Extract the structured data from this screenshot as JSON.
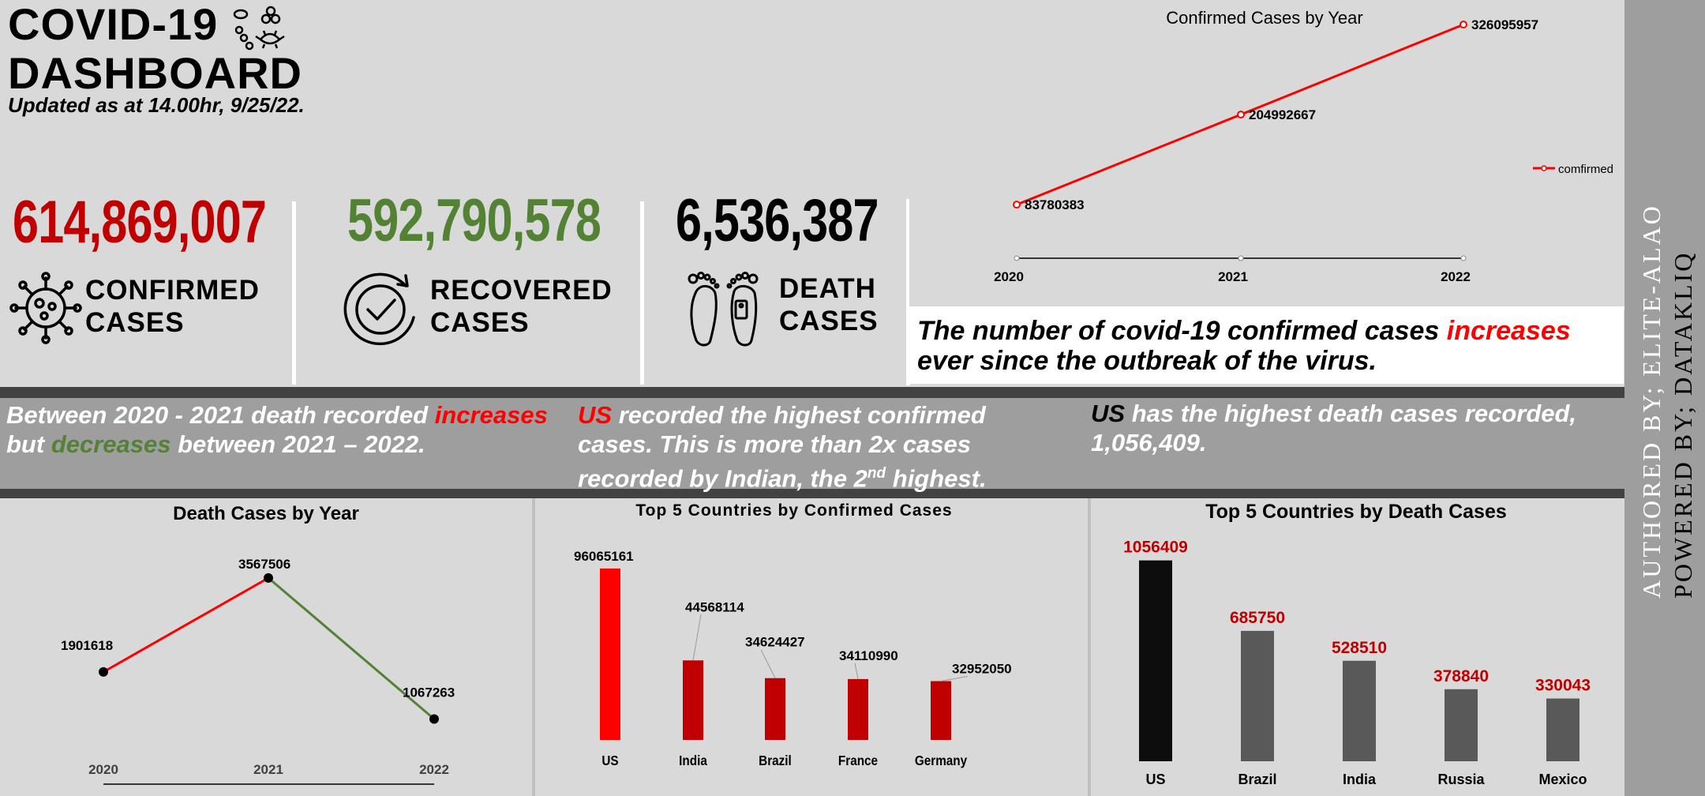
{
  "header": {
    "title_line1": "COVID-19",
    "title_line2": "DASHBOARD",
    "updated": "Updated as at 14.00hr, 9/25/22."
  },
  "kpis": {
    "confirmed": {
      "value": "614,869,007",
      "label1": "CONFIRMED",
      "label2": "CASES",
      "color": "#c00000",
      "icon": "virus-icon"
    },
    "recovered": {
      "value": "592,790,578",
      "label1": "RECOVERED",
      "label2": "CASES",
      "color": "#548235",
      "icon": "recovered-check-icon"
    },
    "death": {
      "value": "6,536,387",
      "label1": "DEATH",
      "label2": "CASES",
      "color": "#000000",
      "icon": "feet-tag-icon"
    }
  },
  "summary": {
    "part1": "The number of covid-19 confirmed cases ",
    "highlight": "increases",
    "part2": " ever since the outbreak of the virus."
  },
  "insights": {
    "left": {
      "a": "Between 2020 - 2021 death recorded ",
      "b": "increases",
      "c": " but ",
      "d": "decreases",
      "e": " between 2021 – 2022."
    },
    "middle": {
      "a": "US",
      "b": " recorded the highest confirmed cases. This is more than 2x cases recorded by Indian, the 2",
      "sup": "nd",
      "c": " highest."
    },
    "right": {
      "a": "US",
      "b": " has the highest death cases recorded, 1,056,409."
    }
  },
  "credits": {
    "authored_label": "AUTHORED BY; ",
    "authored_name": "ELITE-ALAO",
    "powered_label": "POWERED BY; ",
    "powered_name": "DATAKLIQ"
  },
  "chart_data": [
    {
      "id": "confirmed-by-year",
      "type": "line",
      "title": "Confirmed Cases by Year",
      "categories": [
        "2020",
        "2021",
        "2022"
      ],
      "series": [
        {
          "name": "comfirmed",
          "values": [
            83780383,
            204992667,
            326095957
          ],
          "color": "#ff0000"
        }
      ],
      "legend": "right",
      "ylim": [
        0,
        340000000
      ]
    },
    {
      "id": "death-by-year",
      "type": "line",
      "title": "Death Cases by Year",
      "categories": [
        "2020",
        "2021",
        "2022"
      ],
      "series": [
        {
          "name": "death",
          "values": [
            1901618,
            3567506,
            1067263
          ]
        }
      ],
      "segment_colors": [
        "#ff0000",
        "#548235"
      ],
      "legend": "bottom",
      "ylim": [
        500000,
        4000000
      ]
    },
    {
      "id": "top5-confirmed",
      "type": "bar",
      "title": "Top 5 Countries  by Confirmed Cases",
      "categories": [
        "US",
        "India",
        "Brazil",
        "France",
        "Germany"
      ],
      "values": [
        96065161,
        44568114,
        34624427,
        34110990,
        32952050
      ],
      "colors": [
        "#ff0000",
        "#c00000",
        "#c00000",
        "#c00000",
        "#c00000"
      ],
      "ylim": [
        0,
        100000000
      ]
    },
    {
      "id": "top5-death",
      "type": "bar",
      "title": "Top 5 Countries by Death Cases",
      "categories": [
        "US",
        "Brazil",
        "India",
        "Russia",
        "Mexico"
      ],
      "values": [
        1056409,
        685750,
        528510,
        378840,
        330043
      ],
      "colors": [
        "#0d0d0d",
        "#595959",
        "#595959",
        "#595959",
        "#595959"
      ],
      "label_color": "#c00000",
      "ylim": [
        0,
        1080000
      ]
    }
  ]
}
